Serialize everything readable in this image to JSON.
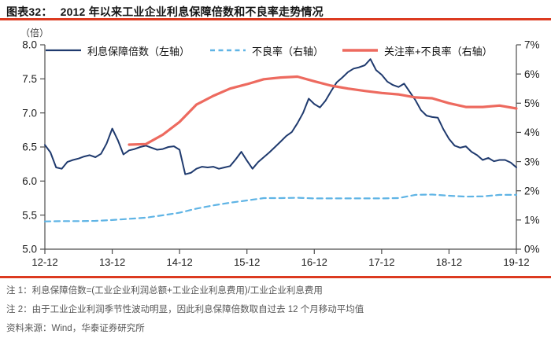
{
  "header": {
    "tag": "图表32：",
    "title": "2012 年以来工业企业利息保障倍数和不良率走势情况"
  },
  "unit_label": "（倍）",
  "colors": {
    "accent_rule": "#dc3a20",
    "navy": "#1f3a6e",
    "salmon": "#ed6a5f",
    "light_blue": "#5fb4e5",
    "axis": "#4d4d4d",
    "axis_text": "#1a1a1a"
  },
  "chart_data": {
    "type": "line",
    "title": "2012 年以来工业企业利息保障倍数和不良率走势情况",
    "grid": "off",
    "legend_position": "top",
    "left_axis": {
      "label": "（倍）",
      "min": 5.0,
      "max": 8.0,
      "ticks": [
        "8.0",
        "7.5",
        "7.0",
        "6.5",
        "6.0",
        "5.5",
        "5.0"
      ]
    },
    "right_axis": {
      "min": 0,
      "max": 7,
      "ticks": [
        "7%",
        "6%",
        "5%",
        "4%",
        "3%",
        "2%",
        "1%",
        "0%"
      ]
    },
    "x_axis": {
      "ticks": [
        "12-12",
        "13-12",
        "14-12",
        "15-12",
        "16-12",
        "17-12",
        "18-12",
        "19-12"
      ],
      "months_span": 84
    },
    "series": [
      {
        "id": "interest-coverage",
        "name": "利息保障倍数（左轴）",
        "axis": "left",
        "style": "solid",
        "color": "#1f3a6e",
        "width": 2,
        "start_month": 0,
        "step": 1,
        "values": [
          6.53,
          6.42,
          6.2,
          6.18,
          6.28,
          6.31,
          6.33,
          6.36,
          6.38,
          6.35,
          6.4,
          6.55,
          6.77,
          6.6,
          6.39,
          6.45,
          6.47,
          6.5,
          6.52,
          6.49,
          6.46,
          6.47,
          6.5,
          6.51,
          6.46,
          6.1,
          6.12,
          6.18,
          6.21,
          6.2,
          6.21,
          6.18,
          6.2,
          6.22,
          6.32,
          6.43,
          6.3,
          6.18,
          6.28,
          6.35,
          6.42,
          6.5,
          6.58,
          6.66,
          6.72,
          6.85,
          7.0,
          7.21,
          7.13,
          7.08,
          7.18,
          7.32,
          7.45,
          7.52,
          7.6,
          7.65,
          7.67,
          7.7,
          7.79,
          7.63,
          7.56,
          7.46,
          7.41,
          7.38,
          7.43,
          7.31,
          7.19,
          7.04,
          6.96,
          6.94,
          6.93,
          6.76,
          6.62,
          6.52,
          6.49,
          6.51,
          6.43,
          6.38,
          6.31,
          6.34,
          6.29,
          6.31,
          6.31,
          6.27,
          6.2
        ]
      },
      {
        "id": "npl-ratio",
        "name": "不良率（右轴）",
        "axis": "right",
        "style": "dashed",
        "color": "#5fb4e5",
        "width": 2.2,
        "start_month": 0,
        "step": 3,
        "values": [
          0.95,
          0.96,
          0.96,
          0.97,
          1.0,
          1.04,
          1.08,
          1.16,
          1.25,
          1.39,
          1.5,
          1.59,
          1.67,
          1.75,
          1.75,
          1.76,
          1.74,
          1.74,
          1.74,
          1.74,
          1.74,
          1.75,
          1.86,
          1.87,
          1.83,
          1.8,
          1.81,
          1.86,
          1.86
        ]
      },
      {
        "id": "special-mention-plus-npl",
        "name": "关注率+不良率（右轴）",
        "axis": "right",
        "style": "solid",
        "color": "#ed6a5f",
        "width": 3.2,
        "start_month": 15,
        "step": 3,
        "values": [
          3.58,
          3.6,
          3.92,
          4.36,
          4.95,
          5.25,
          5.5,
          5.65,
          5.82,
          5.88,
          5.91,
          5.75,
          5.6,
          5.5,
          5.42,
          5.35,
          5.3,
          5.2,
          5.17,
          5.0,
          4.87,
          4.87,
          4.92,
          4.82
        ]
      }
    ]
  },
  "notes": [
    "注 1：利息保障倍数=(工业企业利润总额+工业企业利息费用)/工业企业利息费用",
    "注 2：由于工业企业利润季节性波动明显，因此利息保障倍数取自过去 12 个月移动平均值"
  ],
  "source": "资料来源：Wind，华泰证券研究所"
}
